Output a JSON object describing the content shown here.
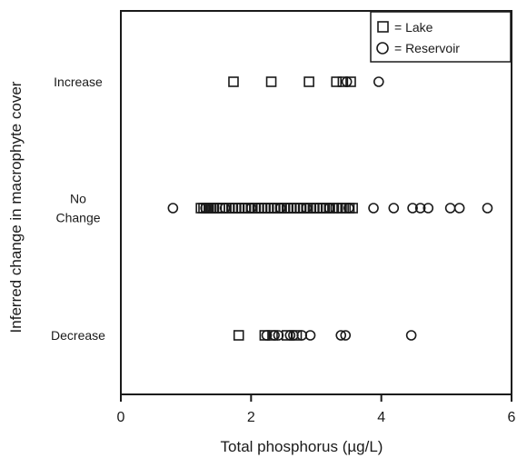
{
  "chart_data": {
    "type": "scatter",
    "xlabel": "Total phosphorus (µg/L)",
    "ylabel": "Inferred change in macrophyte cover",
    "xlim": [
      0,
      6
    ],
    "x_ticks": [
      0,
      2,
      4,
      6
    ],
    "categories": [
      {
        "key": "increase",
        "lines": [
          "Increase"
        ]
      },
      {
        "key": "nochange",
        "lines": [
          "No",
          "Change"
        ]
      },
      {
        "key": "decrease",
        "lines": [
          "Decrease"
        ]
      }
    ],
    "legend": {
      "position": "top-right",
      "entries": [
        {
          "marker": "square",
          "label": "= Lake"
        },
        {
          "marker": "circle",
          "label": "= Reservoir"
        }
      ]
    },
    "series": [
      {
        "name": "Lake",
        "marker": "square",
        "points": {
          "increase": [
            1.73,
            2.31,
            2.89,
            3.31,
            3.41,
            3.53
          ],
          "nochange": [
            1.23,
            1.27,
            1.31,
            1.35,
            1.39,
            1.43,
            1.47,
            1.52,
            1.56,
            1.61,
            1.66,
            1.71,
            1.76,
            1.81,
            1.86,
            1.91,
            1.96,
            2.01,
            2.06,
            2.11,
            2.16,
            2.21,
            2.26,
            2.31,
            2.36,
            2.41,
            2.46,
            2.51,
            2.56,
            2.61,
            2.66,
            2.71,
            2.76,
            2.81,
            2.86,
            2.91,
            2.96,
            3.01,
            3.06,
            3.11,
            3.16,
            3.21,
            3.27,
            3.33,
            3.39,
            3.45,
            3.51,
            3.56
          ],
          "decrease": [
            1.81,
            2.21,
            2.33,
            2.55,
            2.7
          ]
        }
      },
      {
        "name": "Reservoir",
        "marker": "circle",
        "points": {
          "increase": [
            3.47,
            3.96
          ],
          "nochange": [
            0.8,
            1.3,
            1.6,
            2.0,
            2.45,
            2.85,
            3.2,
            3.5,
            3.88,
            4.19,
            4.48,
            4.6,
            4.72,
            5.06,
            5.2,
            5.63
          ],
          "decrease": [
            2.24,
            2.36,
            2.42,
            2.6,
            2.65,
            2.78,
            2.91,
            3.38,
            3.45,
            4.46
          ]
        }
      }
    ]
  }
}
